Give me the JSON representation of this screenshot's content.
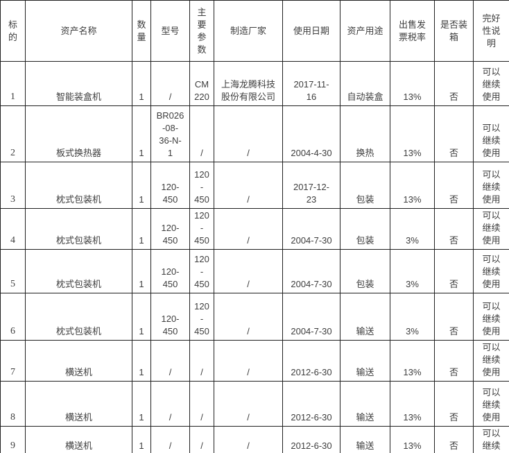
{
  "colors": {
    "border": "#1f1f1f",
    "text": "#3d3d3d",
    "background": "#ffffff"
  },
  "table": {
    "columns": [
      {
        "id": "bid-number",
        "label": "标\n的"
      },
      {
        "id": "asset-name",
        "label": "资产名称"
      },
      {
        "id": "quantity",
        "label": "数\n量"
      },
      {
        "id": "model",
        "label": "型号"
      },
      {
        "id": "main-parameters",
        "label": "主\n要\n参\n数"
      },
      {
        "id": "manufacturer",
        "label": "制造厂家"
      },
      {
        "id": "use-date",
        "label": "使用日期"
      },
      {
        "id": "asset-purpose",
        "label": "资产用途"
      },
      {
        "id": "invoice-tax-rate",
        "label": "出售发\n票税率"
      },
      {
        "id": "boxed",
        "label": "是否装\n箱"
      },
      {
        "id": "condition",
        "label": "完好\n性说\n明"
      }
    ],
    "rows": [
      [
        "1",
        "智能装盒机",
        "1",
        "/",
        "CM\n220",
        "上海龙腾科技\n股份有限公司",
        "2017-11-\n16",
        "自动装盒",
        "13%",
        "否",
        "可以\n继续\n使用"
      ],
      [
        "2",
        "板式换热器",
        "1",
        "BR026\n-08-\n36-N-\n1",
        "/",
        "/",
        "2004-4-30",
        "换热",
        "13%",
        "否",
        "可以\n继续\n使用"
      ],
      [
        "3",
        "枕式包装机",
        "1",
        "120-\n450",
        "120\n-\n450",
        "/",
        "2017-12-\n23",
        "包装",
        "13%",
        "否",
        "可以\n继续\n使用"
      ],
      [
        "4",
        "枕式包装机",
        "1",
        "120-\n450",
        "120\n-\n450",
        "/",
        "2004-7-30",
        "包装",
        "3%",
        "否",
        "可以\n继续\n使用"
      ],
      [
        "5",
        "枕式包装机",
        "1",
        "120-\n450",
        "120\n-\n450",
        "/",
        "2004-7-30",
        "包装",
        "3%",
        "否",
        "可以\n继续\n使用"
      ],
      [
        "6",
        "枕式包装机",
        "1",
        "120-\n450",
        "120\n-\n450",
        "/",
        "2004-7-30",
        "输送",
        "3%",
        "否",
        "可以\n继续\n使用"
      ],
      [
        "7",
        "横送机",
        "1",
        "/",
        "/",
        "/",
        "2012-6-30",
        "输送",
        "13%",
        "否",
        "可以\n继续\n使用"
      ],
      [
        "8",
        "横送机",
        "1",
        "/",
        "/",
        "/",
        "2012-6-30",
        "输送",
        "13%",
        "否",
        "可以\n继续\n使用"
      ],
      [
        "9",
        "横送机",
        "1",
        "/",
        "/",
        "/",
        "2012-6-30",
        "输送",
        "13%",
        "否",
        "可以\n继续"
      ]
    ]
  }
}
